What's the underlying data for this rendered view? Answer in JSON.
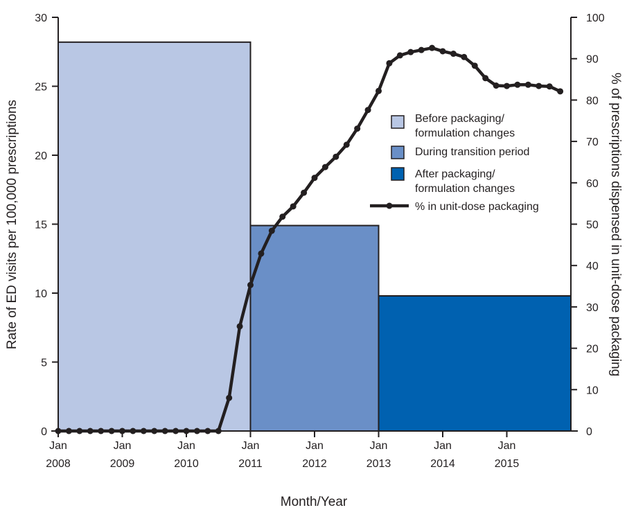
{
  "chart_data": {
    "type": "bar+line",
    "title": "",
    "xlabel": "Month/Year",
    "ylabel": "Rate of ED visits per 100,000 prescriptions",
    "y2label": "% of prescriptions dispensed in unit-dose packaging",
    "ylim": [
      0,
      30
    ],
    "y2lim": [
      0,
      100
    ],
    "y_ticks": [
      0,
      5,
      10,
      15,
      20,
      25,
      30
    ],
    "y2_ticks": [
      0,
      10,
      20,
      30,
      40,
      50,
      60,
      70,
      80,
      90,
      100
    ],
    "x_ticks": [
      {
        "line1": "Jan",
        "line2": "2008",
        "date": "2008-01"
      },
      {
        "line1": "Jan",
        "line2": "2009",
        "date": "2009-01"
      },
      {
        "line1": "Jan",
        "line2": "2010",
        "date": "2010-01"
      },
      {
        "line1": "Jan",
        "line2": "2011",
        "date": "2011-01"
      },
      {
        "line1": "Jan",
        "line2": "2012",
        "date": "2012-01"
      },
      {
        "line1": "Jan",
        "line2": "2013",
        "date": "2013-01"
      },
      {
        "line1": "Jan",
        "line2": "2014",
        "date": "2014-01"
      },
      {
        "line1": "Jan",
        "line2": "2015",
        "date": "2015-01"
      }
    ],
    "xlim": [
      "2008-01",
      "2016-01"
    ],
    "bars": [
      {
        "name": "Before packaging/ formulation changes",
        "lines": [
          "Before packaging/",
          "formulation changes"
        ],
        "start": "2008-01",
        "end": "2011-01",
        "value": 28.2,
        "color": "#b9c7e4"
      },
      {
        "name": "During transition period",
        "lines": [
          "During transition period"
        ],
        "start": "2011-01",
        "end": "2013-01",
        "value": 14.9,
        "color": "#6a8fc7"
      },
      {
        "name": "After packaging/ formulation changes",
        "lines": [
          "After packaging/",
          "formulation changes"
        ],
        "start": "2013-01",
        "end": "2016-01",
        "value": 9.8,
        "color": "#0061b0"
      }
    ],
    "series": [
      {
        "name": "% in unit-dose packaging",
        "color": "#231f20",
        "points": [
          [
            "2008-01",
            0
          ],
          [
            "2008-03",
            0
          ],
          [
            "2008-05",
            0
          ],
          [
            "2008-07",
            0
          ],
          [
            "2008-09",
            0
          ],
          [
            "2008-11",
            0
          ],
          [
            "2009-01",
            0
          ],
          [
            "2009-03",
            0
          ],
          [
            "2009-05",
            0
          ],
          [
            "2009-07",
            0
          ],
          [
            "2009-09",
            0
          ],
          [
            "2009-11",
            0
          ],
          [
            "2010-01",
            0
          ],
          [
            "2010-03",
            0
          ],
          [
            "2010-05",
            0
          ],
          [
            "2010-07",
            0
          ],
          [
            "2010-09",
            8
          ],
          [
            "2010-11",
            25.3
          ],
          [
            "2011-01",
            35.3
          ],
          [
            "2011-03",
            42.9
          ],
          [
            "2011-05",
            48.4
          ],
          [
            "2011-07",
            51.8
          ],
          [
            "2011-09",
            54.3
          ],
          [
            "2011-11",
            57.6
          ],
          [
            "2012-01",
            61.2
          ],
          [
            "2012-03",
            63.8
          ],
          [
            "2012-05",
            66.3
          ],
          [
            "2012-07",
            69.2
          ],
          [
            "2012-09",
            73.1
          ],
          [
            "2012-11",
            77.6
          ],
          [
            "2013-01",
            82.2
          ],
          [
            "2013-03",
            88.9
          ],
          [
            "2013-05",
            90.8
          ],
          [
            "2013-07",
            91.6
          ],
          [
            "2013-09",
            92.1
          ],
          [
            "2013-11",
            92.6
          ],
          [
            "2014-01",
            91.8
          ],
          [
            "2014-03",
            91.2
          ],
          [
            "2014-05",
            90.4
          ],
          [
            "2014-07",
            88.3
          ],
          [
            "2014-09",
            85.3
          ],
          [
            "2014-11",
            83.5
          ],
          [
            "2015-01",
            83.4
          ],
          [
            "2015-03",
            83.7
          ],
          [
            "2015-05",
            83.7
          ],
          [
            "2015-07",
            83.4
          ],
          [
            "2015-09",
            83.3
          ],
          [
            "2015-11",
            82.1
          ]
        ]
      }
    ],
    "legend": {
      "placement": "right-center"
    }
  }
}
